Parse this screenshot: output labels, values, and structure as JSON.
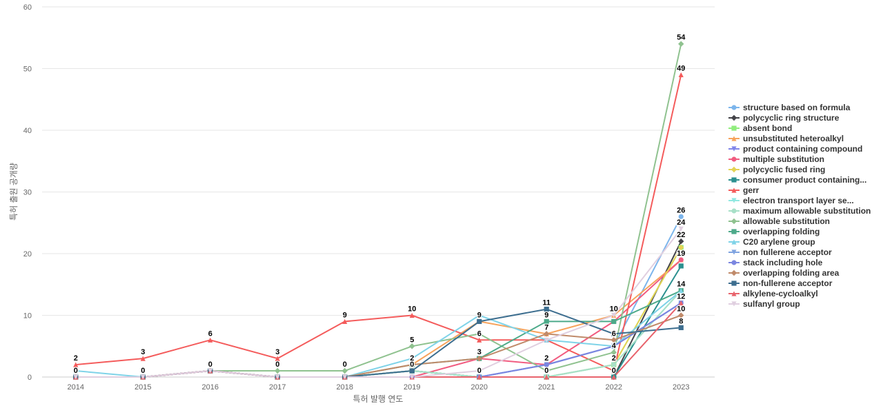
{
  "chart_data": {
    "type": "line",
    "xlabel": "특허 발행 연도",
    "ylabel": "특허 출원 공개량",
    "ylim": [
      0,
      60
    ],
    "yticks": [
      0,
      10,
      20,
      30,
      40,
      50,
      60
    ],
    "categories": [
      "2014",
      "2015",
      "2016",
      "2017",
      "2018",
      "2019",
      "2020",
      "2021",
      "2022",
      "2023"
    ],
    "legend_position": "right",
    "grid": true,
    "series": [
      {
        "name": "structure based on formula",
        "color": "#7cb5ec",
        "marker": "circle",
        "values": [
          0,
          0,
          1,
          0,
          0,
          1,
          0,
          2,
          5,
          26
        ]
      },
      {
        "name": "polycyclic ring structure",
        "color": "#434348",
        "marker": "diamond",
        "values": [
          0,
          0,
          1,
          0,
          0,
          1,
          0,
          0,
          0,
          22
        ]
      },
      {
        "name": "absent bond",
        "color": "#90ed7d",
        "marker": "square",
        "values": [
          0,
          0,
          1,
          0,
          0,
          1,
          0,
          0,
          2,
          21
        ]
      },
      {
        "name": "unsubstituted heteroalkyl",
        "color": "#f7a35c",
        "marker": "triangle",
        "values": [
          0,
          0,
          1,
          0,
          0,
          2,
          9,
          7,
          10,
          19
        ]
      },
      {
        "name": "product containing compound",
        "color": "#8085e9",
        "marker": "triangle-down",
        "values": [
          0,
          0,
          1,
          0,
          0,
          0,
          0,
          2,
          5,
          12
        ]
      },
      {
        "name": "multiple substitution",
        "color": "#f15c80",
        "marker": "circle",
        "values": [
          0,
          0,
          1,
          0,
          0,
          0,
          3,
          2,
          9,
          19
        ]
      },
      {
        "name": "polycyclic fused ring",
        "color": "#e4d354",
        "marker": "diamond",
        "values": [
          0,
          0,
          1,
          0,
          0,
          1,
          0,
          0,
          2,
          21
        ]
      },
      {
        "name": "consumer product containing...",
        "color": "#2b908f",
        "marker": "square",
        "values": [
          0,
          0,
          1,
          0,
          0,
          1,
          0,
          0,
          0,
          18
        ]
      },
      {
        "name": "gerr",
        "color": "#f45b5b",
        "marker": "triangle",
        "values": [
          2,
          3,
          6,
          3,
          9,
          10,
          6,
          6,
          1,
          49
        ]
      },
      {
        "name": "electron transport layer se...",
        "color": "#91e8e1",
        "marker": "triangle-down",
        "values": [
          0,
          0,
          1,
          0,
          0,
          1,
          0,
          0,
          2,
          14
        ]
      },
      {
        "name": "maximum allowable substitution",
        "color": "#a8e0c8",
        "marker": "circle",
        "values": [
          0,
          0,
          1,
          0,
          0,
          1,
          0,
          0,
          2,
          14
        ]
      },
      {
        "name": "allowable substitution",
        "color": "#8fc28f",
        "marker": "diamond",
        "values": [
          0,
          0,
          1,
          1,
          1,
          5,
          7,
          1,
          4,
          54
        ]
      },
      {
        "name": "overlapping folding",
        "color": "#4daa8a",
        "marker": "square",
        "values": [
          0,
          0,
          1,
          0,
          0,
          2,
          3,
          9,
          9,
          14
        ]
      },
      {
        "name": "C20 arylene group",
        "color": "#7fd3e8",
        "marker": "triangle",
        "values": [
          1,
          0,
          1,
          0,
          0,
          3,
          10,
          6,
          5,
          14
        ]
      },
      {
        "name": "non fullerene acceptor",
        "color": "#7fa3e0",
        "marker": "triangle-down",
        "values": [
          0,
          0,
          1,
          0,
          0,
          0,
          0,
          2,
          5,
          12
        ]
      },
      {
        "name": "stack including hole",
        "color": "#7b86e0",
        "marker": "circle",
        "values": [
          0,
          0,
          1,
          0,
          0,
          0,
          0,
          2,
          5,
          12
        ]
      },
      {
        "name": "overlapping folding area",
        "color": "#c08a6a",
        "marker": "diamond",
        "values": [
          0,
          0,
          1,
          0,
          0,
          2,
          3,
          7,
          6,
          10
        ]
      },
      {
        "name": "non-fullerene acceptor",
        "color": "#3d6e8f",
        "marker": "square",
        "values": [
          0,
          0,
          1,
          0,
          0,
          1,
          9,
          11,
          7,
          8
        ]
      },
      {
        "name": "alkylene-cycloalkyl",
        "color": "#e8636c",
        "marker": "triangle",
        "values": [
          0,
          0,
          1,
          0,
          0,
          0,
          0,
          0,
          0,
          12
        ]
      },
      {
        "name": "sulfanyl group",
        "color": "#e0cfe0",
        "marker": "triangle-down",
        "values": [
          0,
          0,
          1,
          0,
          0,
          0,
          1,
          6,
          10,
          24
        ]
      }
    ],
    "data_labels": [
      {
        "x": "2014",
        "y": 2,
        "text": "2"
      },
      {
        "x": "2014",
        "y": 0,
        "text": "0"
      },
      {
        "x": "2015",
        "y": 3,
        "text": "3"
      },
      {
        "x": "2015",
        "y": 0,
        "text": "0"
      },
      {
        "x": "2016",
        "y": 6,
        "text": "6"
      },
      {
        "x": "2016",
        "y": 1,
        "text": "0"
      },
      {
        "x": "2017",
        "y": 3,
        "text": "3"
      },
      {
        "x": "2017",
        "y": 1,
        "text": "0"
      },
      {
        "x": "2018",
        "y": 9,
        "text": "9"
      },
      {
        "x": "2018",
        "y": 1,
        "text": "0"
      },
      {
        "x": "2019",
        "y": 10,
        "text": "10"
      },
      {
        "x": "2019",
        "y": 5,
        "text": "5"
      },
      {
        "x": "2019",
        "y": 2,
        "text": "2"
      },
      {
        "x": "2019",
        "y": 1,
        "text": "0"
      },
      {
        "x": "2020",
        "y": 9,
        "text": "9"
      },
      {
        "x": "2020",
        "y": 6,
        "text": "6"
      },
      {
        "x": "2020",
        "y": 3,
        "text": "3"
      },
      {
        "x": "2020",
        "y": 0,
        "text": "0"
      },
      {
        "x": "2021",
        "y": 11,
        "text": "11"
      },
      {
        "x": "2021",
        "y": 9,
        "text": "9"
      },
      {
        "x": "2021",
        "y": 7,
        "text": "7"
      },
      {
        "x": "2021",
        "y": 2,
        "text": "2"
      },
      {
        "x": "2021",
        "y": 0,
        "text": "0"
      },
      {
        "x": "2022",
        "y": 10,
        "text": "10"
      },
      {
        "x": "2022",
        "y": 6,
        "text": "6"
      },
      {
        "x": "2022",
        "y": 4,
        "text": "4"
      },
      {
        "x": "2022",
        "y": 2,
        "text": "2"
      },
      {
        "x": "2022",
        "y": 0,
        "text": "0"
      },
      {
        "x": "2023",
        "y": 54,
        "text": "54"
      },
      {
        "x": "2023",
        "y": 49,
        "text": "49"
      },
      {
        "x": "2023",
        "y": 26,
        "text": "26"
      },
      {
        "x": "2023",
        "y": 24,
        "text": "24"
      },
      {
        "x": "2023",
        "y": 22,
        "text": "22"
      },
      {
        "x": "2023",
        "y": 19,
        "text": "19"
      },
      {
        "x": "2023",
        "y": 14,
        "text": "14"
      },
      {
        "x": "2023",
        "y": 12,
        "text": "12"
      },
      {
        "x": "2023",
        "y": 10,
        "text": "10"
      },
      {
        "x": "2023",
        "y": 8,
        "text": "8"
      }
    ]
  }
}
